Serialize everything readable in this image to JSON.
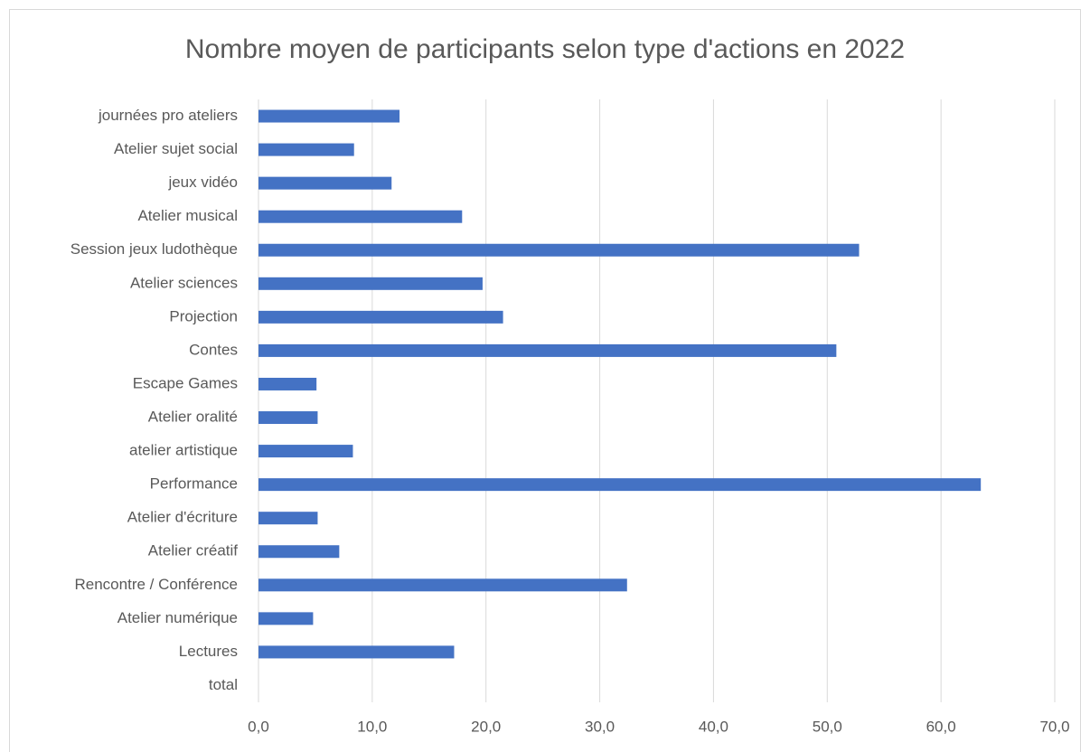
{
  "chart_data": {
    "type": "bar",
    "orientation": "horizontal",
    "title": "Nombre moyen de participants selon type d'actions en 2022",
    "categories": [
      "journées pro ateliers",
      "Atelier sujet social",
      "jeux vidéo",
      "Atelier musical",
      "Session jeux ludothèque",
      "Atelier sciences",
      "Projection",
      "Contes",
      "Escape Games",
      "Atelier oralité",
      "atelier artistique",
      "Performance",
      "Atelier d'écriture",
      "Atelier créatif",
      "Rencontre / Conférence",
      "Atelier numérique",
      "Lectures",
      "total"
    ],
    "values": [
      12.4,
      8.4,
      11.7,
      17.9,
      52.8,
      19.7,
      21.5,
      50.8,
      5.1,
      5.2,
      8.3,
      63.5,
      5.2,
      7.1,
      32.4,
      4.8,
      17.2,
      null
    ],
    "color": "#4472c4",
    "xlim": [
      0,
      70
    ],
    "xticks": [
      {
        "value": 0,
        "label": "0,0"
      },
      {
        "value": 10,
        "label": "10,0"
      },
      {
        "value": 20,
        "label": "20,0"
      },
      {
        "value": 30,
        "label": "30,0"
      },
      {
        "value": 40,
        "label": "40,0"
      },
      {
        "value": 50,
        "label": "50,0"
      },
      {
        "value": 60,
        "label": "60,0"
      },
      {
        "value": 70,
        "label": "70,0"
      }
    ],
    "grid": true
  }
}
